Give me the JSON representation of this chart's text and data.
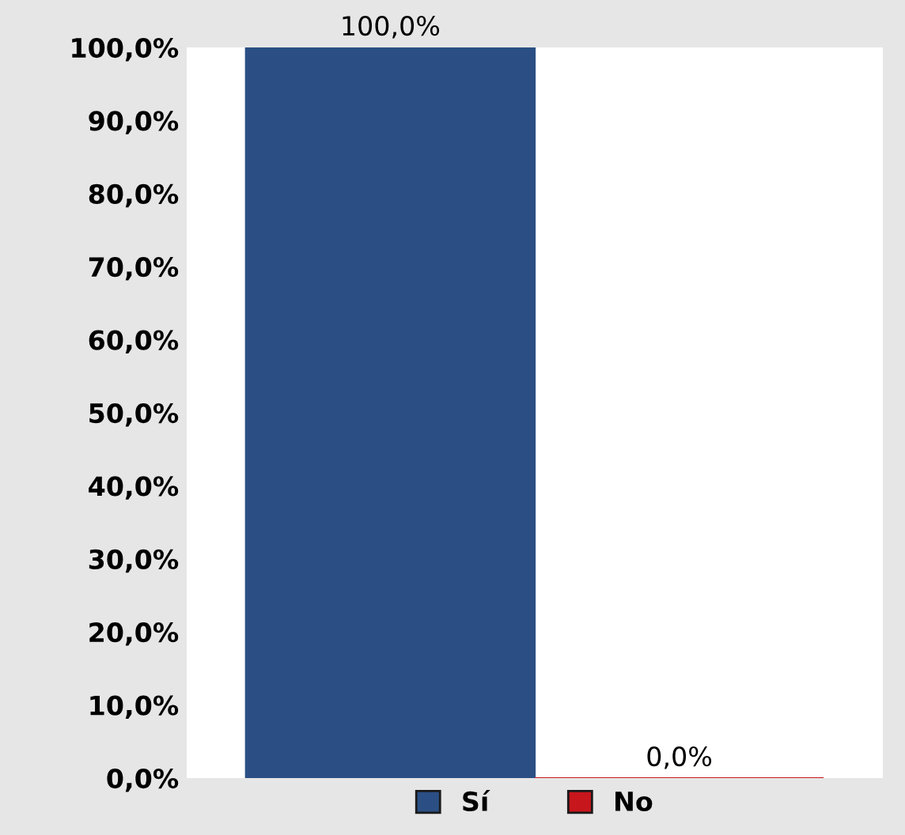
{
  "chart_data": {
    "type": "bar",
    "categories": [
      null
    ],
    "series": [
      {
        "name": "Sí",
        "color": "#2b4f84",
        "values": [
          100
        ],
        "value_labels": [
          "100,0%"
        ]
      },
      {
        "name": "No",
        "color": "#c8161d",
        "values": [
          0
        ],
        "value_labels": [
          "0,0%"
        ]
      }
    ],
    "ylim": [
      0,
      100
    ],
    "yticks": [
      {
        "value": 0,
        "label": "0,0%"
      },
      {
        "value": 10,
        "label": "10,0%"
      },
      {
        "value": 20,
        "label": "20,0%"
      },
      {
        "value": 30,
        "label": "30,0%"
      },
      {
        "value": 40,
        "label": "40,0%"
      },
      {
        "value": 50,
        "label": "50,0%"
      },
      {
        "value": 60,
        "label": "60,0%"
      },
      {
        "value": 70,
        "label": "70,0%"
      },
      {
        "value": 80,
        "label": "80,0%"
      },
      {
        "value": 90,
        "label": "90,0%"
      },
      {
        "value": 100,
        "label": "100,0%"
      }
    ],
    "grid": false,
    "legend": "bottom"
  }
}
